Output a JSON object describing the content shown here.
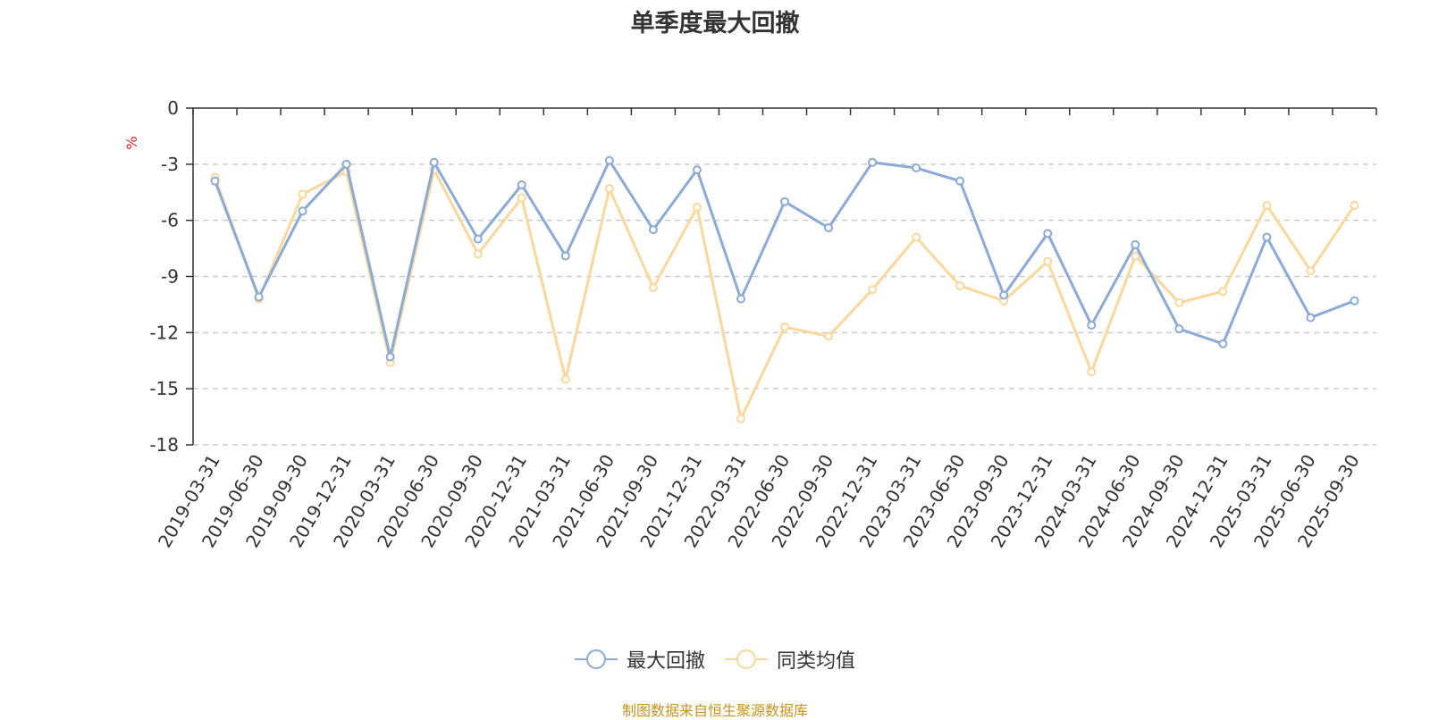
{
  "chart_data": {
    "type": "line",
    "title": "单季度最大回撤",
    "ylabel": "%",
    "xlabel": "",
    "ylim": [
      -18,
      0
    ],
    "yticks": [
      0,
      -3,
      -6,
      -9,
      -12,
      -15,
      -18
    ],
    "grid": true,
    "legend_position": "bottom-center",
    "categories": [
      "2019-03-31",
      "2019-06-30",
      "2019-09-30",
      "2019-12-31",
      "2020-03-31",
      "2020-06-30",
      "2020-09-30",
      "2020-12-31",
      "2021-03-31",
      "2021-06-30",
      "2021-09-30",
      "2021-12-31",
      "2022-03-31",
      "2022-06-30",
      "2022-09-30",
      "2022-12-31",
      "2023-03-31",
      "2023-06-30",
      "2023-09-30",
      "2023-12-31",
      "2024-03-31",
      "2024-06-30",
      "2024-09-30",
      "2024-12-31",
      "2025-03-31",
      "2025-06-30",
      "2025-09-30"
    ],
    "series": [
      {
        "name": "最大回撤",
        "color": "#8aaad8",
        "values": [
          -3.9,
          -10.1,
          -5.5,
          -3.0,
          -13.3,
          -2.9,
          -7.0,
          -4.1,
          -7.9,
          -2.8,
          -6.5,
          -3.3,
          -10.2,
          -5.0,
          -6.4,
          -2.9,
          -3.2,
          -3.9,
          -10.0,
          -6.7,
          -11.6,
          -7.3,
          -11.8,
          -12.6,
          -6.9,
          -11.2,
          -10.3
        ]
      },
      {
        "name": "同类均值",
        "color": "#fbd89a",
        "values": [
          -3.7,
          -10.2,
          -4.6,
          -3.4,
          -13.6,
          -3.3,
          -7.8,
          -4.8,
          -14.5,
          -4.3,
          -9.6,
          -5.3,
          -16.6,
          -11.7,
          -12.2,
          -9.7,
          -6.9,
          -9.5,
          -10.3,
          -8.2,
          -14.1,
          -7.9,
          -10.4,
          -9.8,
          -5.2,
          -8.7,
          -5.2
        ]
      }
    ],
    "source_note": "制图数据来自恒生聚源数据库"
  }
}
